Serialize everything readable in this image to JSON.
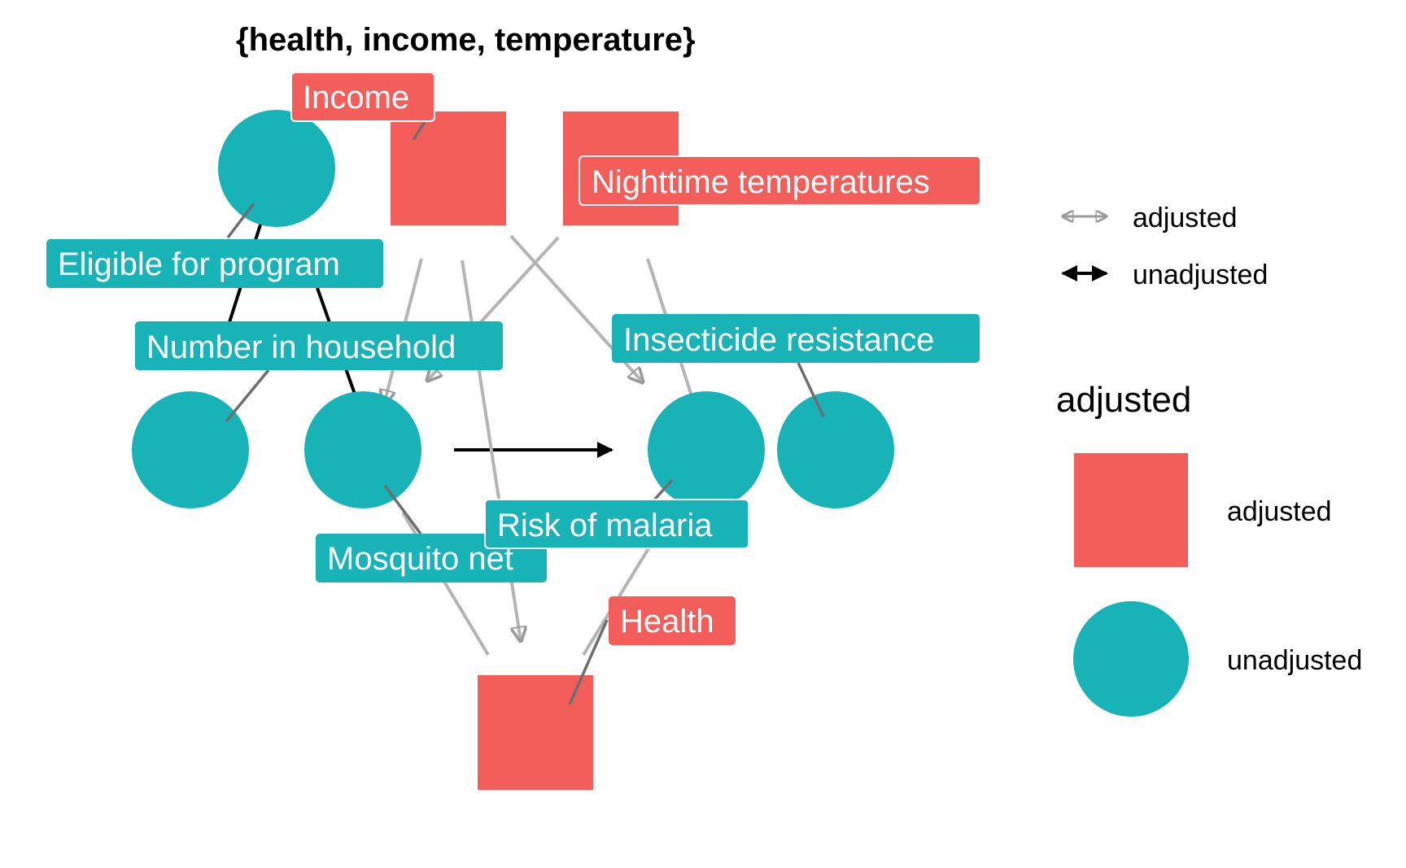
{
  "title": "{health, income, temperature}",
  "colors": {
    "adjusted": "#F35E5A",
    "unadjusted": "#17B3B7"
  },
  "nodes": [
    {
      "id": "eligible",
      "label": "Eligible for program",
      "status": "unadjusted"
    },
    {
      "id": "income",
      "label": "Income",
      "status": "adjusted"
    },
    {
      "id": "temperature",
      "label": "Nighttime temperatures",
      "status": "adjusted"
    },
    {
      "id": "household",
      "label": "Number in household",
      "status": "unadjusted"
    },
    {
      "id": "net",
      "label": "Mosquito net",
      "status": "unadjusted"
    },
    {
      "id": "malaria",
      "label": "Risk of malaria",
      "status": "unadjusted"
    },
    {
      "id": "resistance",
      "label": "Insecticide resistance",
      "status": "unadjusted"
    },
    {
      "id": "health",
      "label": "Health",
      "status": "adjusted"
    }
  ],
  "edges": [
    {
      "from": "eligible",
      "to": "net",
      "type": "unadjusted"
    },
    {
      "from": "household",
      "to": "eligible",
      "type": "unadjusted"
    },
    {
      "from": "net",
      "to": "malaria",
      "type": "unadjusted"
    },
    {
      "from": "income",
      "to": "net",
      "type": "adjusted"
    },
    {
      "from": "income",
      "to": "malaria",
      "type": "adjusted"
    },
    {
      "from": "income",
      "to": "health",
      "type": "adjusted"
    },
    {
      "from": "temperature",
      "to": "net",
      "type": "adjusted"
    },
    {
      "from": "temperature",
      "to": "malaria",
      "type": "adjusted"
    },
    {
      "from": "net",
      "to": "health",
      "type": "adjusted"
    },
    {
      "from": "health",
      "to": "malaria",
      "type": "adjusted"
    }
  ],
  "legend_edges": {
    "items": [
      "adjusted",
      "unadjusted"
    ]
  },
  "legend_nodes": {
    "title": "adjusted",
    "items": [
      "adjusted",
      "unadjusted"
    ]
  }
}
